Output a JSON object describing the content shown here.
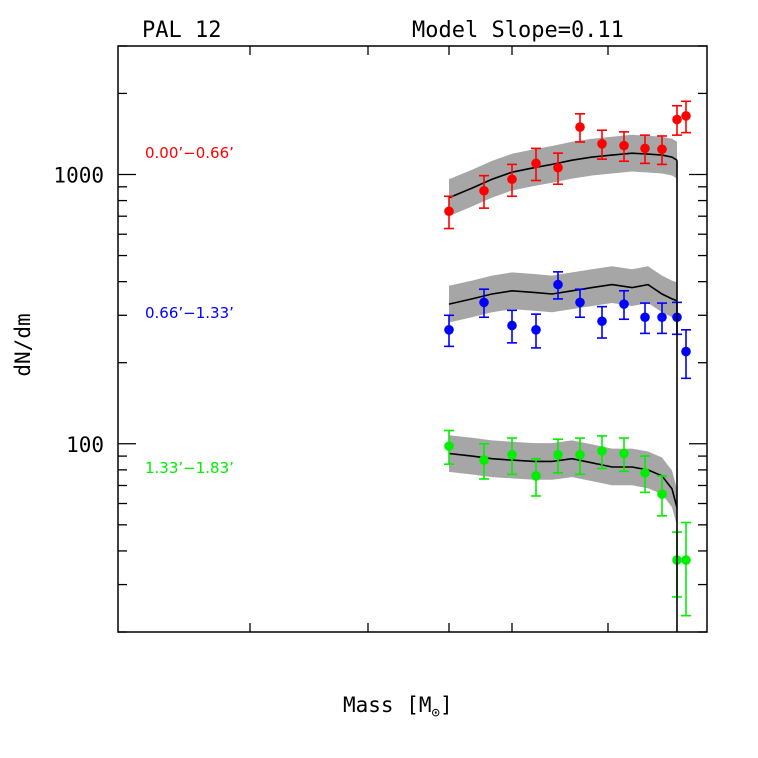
{
  "chart_data": {
    "type": "scatter",
    "title_left": "PAL 12",
    "title_right": "Model Slope=0.11",
    "xlabel": "Mass [M",
    "xlabel_symbol": "⊙",
    "xlabel_close": "]",
    "ylabel": "dN/dm",
    "yscale": "log",
    "ylim": [
      20,
      3000
    ],
    "y_ticks": [
      {
        "value": 100,
        "label": "100"
      },
      {
        "value": 1000,
        "label": "1000"
      }
    ],
    "grid": false,
    "legend": "none",
    "series": [
      {
        "name": "0.00’−0.66’",
        "color": "#ff0000",
        "points": [
          {
            "x": 1,
            "y": 730,
            "err": 100
          },
          {
            "x": 2,
            "y": 870,
            "err": 120
          },
          {
            "x": 3,
            "y": 960,
            "err": 130
          },
          {
            "x": 4,
            "y": 1100,
            "err": 150
          },
          {
            "x": 5,
            "y": 1060,
            "err": 140
          },
          {
            "x": 6,
            "y": 1500,
            "err": 180
          },
          {
            "x": 7,
            "y": 1300,
            "err": 160
          },
          {
            "x": 8,
            "y": 1280,
            "err": 160
          },
          {
            "x": 9,
            "y": 1250,
            "err": 150
          },
          {
            "x": 10,
            "y": 1240,
            "err": 150
          },
          {
            "x": 11,
            "y": 1600,
            "err": 200
          },
          {
            "x": 12,
            "y": 1650,
            "err": 220
          }
        ],
        "model": [
          820,
          890,
          960,
          1020,
          1060,
          1090,
          1130,
          1160,
          1180,
          1200,
          1190,
          1180,
          1160,
          1130
        ]
      },
      {
        "name": "0.66’−1.33’",
        "color": "#0000ff",
        "points": [
          {
            "x": 1,
            "y": 265,
            "err": 35
          },
          {
            "x": 2,
            "y": 335,
            "err": 40
          },
          {
            "x": 3,
            "y": 275,
            "err": 38
          },
          {
            "x": 4,
            "y": 265,
            "err": 38
          },
          {
            "x": 5,
            "y": 390,
            "err": 45
          },
          {
            "x": 6,
            "y": 335,
            "err": 40
          },
          {
            "x": 7,
            "y": 285,
            "err": 38
          },
          {
            "x": 8,
            "y": 330,
            "err": 40
          },
          {
            "x": 9,
            "y": 295,
            "err": 38
          },
          {
            "x": 10,
            "y": 295,
            "err": 38
          },
          {
            "x": 11,
            "y": 295,
            "err": 40
          },
          {
            "x": 12,
            "y": 220,
            "err": 45
          }
        ],
        "model": [
          330,
          345,
          360,
          370,
          365,
          360,
          370,
          380,
          390,
          380,
          390,
          360,
          345,
          340
        ]
      },
      {
        "name": "1.33’−1.83’",
        "color": "#00ee00",
        "points": [
          {
            "x": 1,
            "y": 98,
            "err": 14
          },
          {
            "x": 2,
            "y": 87,
            "err": 13
          },
          {
            "x": 3,
            "y": 91,
            "err": 14
          },
          {
            "x": 4,
            "y": 76,
            "err": 12
          },
          {
            "x": 5,
            "y": 91,
            "err": 13
          },
          {
            "x": 6,
            "y": 91,
            "err": 14
          },
          {
            "x": 7,
            "y": 94,
            "err": 13
          },
          {
            "x": 8,
            "y": 92,
            "err": 13
          },
          {
            "x": 9,
            "y": 78,
            "err": 12
          },
          {
            "x": 10,
            "y": 65,
            "err": 11
          },
          {
            "x": 11,
            "y": 37,
            "err": 10
          },
          {
            "x": 12,
            "y": 37,
            "err": 14
          }
        ],
        "model": [
          92,
          90,
          88,
          87,
          86,
          86,
          88,
          85,
          82,
          82,
          80,
          76,
          68,
          58
        ]
      }
    ]
  }
}
